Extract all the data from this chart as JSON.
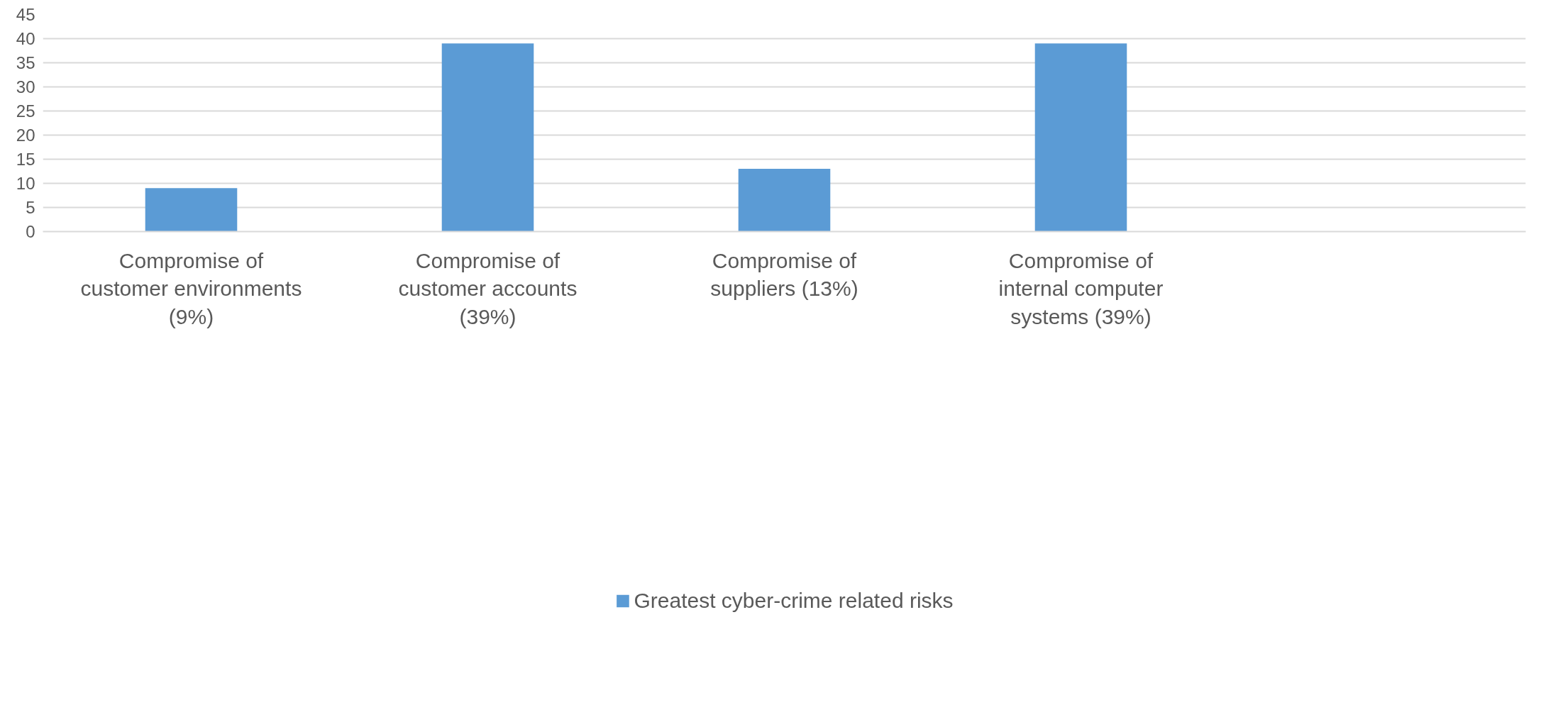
{
  "chart_data": {
    "type": "bar",
    "categories": [
      "Compromise of customer environments (9%)",
      "Compromise of customer accounts (39%)",
      "Compromise of suppliers (13%)",
      "Compromise of internal computer systems (39%)",
      null
    ],
    "series": [
      {
        "name": "Greatest cyber-crime related risks",
        "color": "#5b9bd5",
        "values": [
          9,
          39,
          13,
          39,
          null
        ]
      }
    ],
    "ylim": [
      0,
      45
    ],
    "yticks": [
      0,
      5,
      10,
      15,
      20,
      25,
      30,
      35,
      40,
      45
    ],
    "grid": "y",
    "legend": "bottom"
  }
}
